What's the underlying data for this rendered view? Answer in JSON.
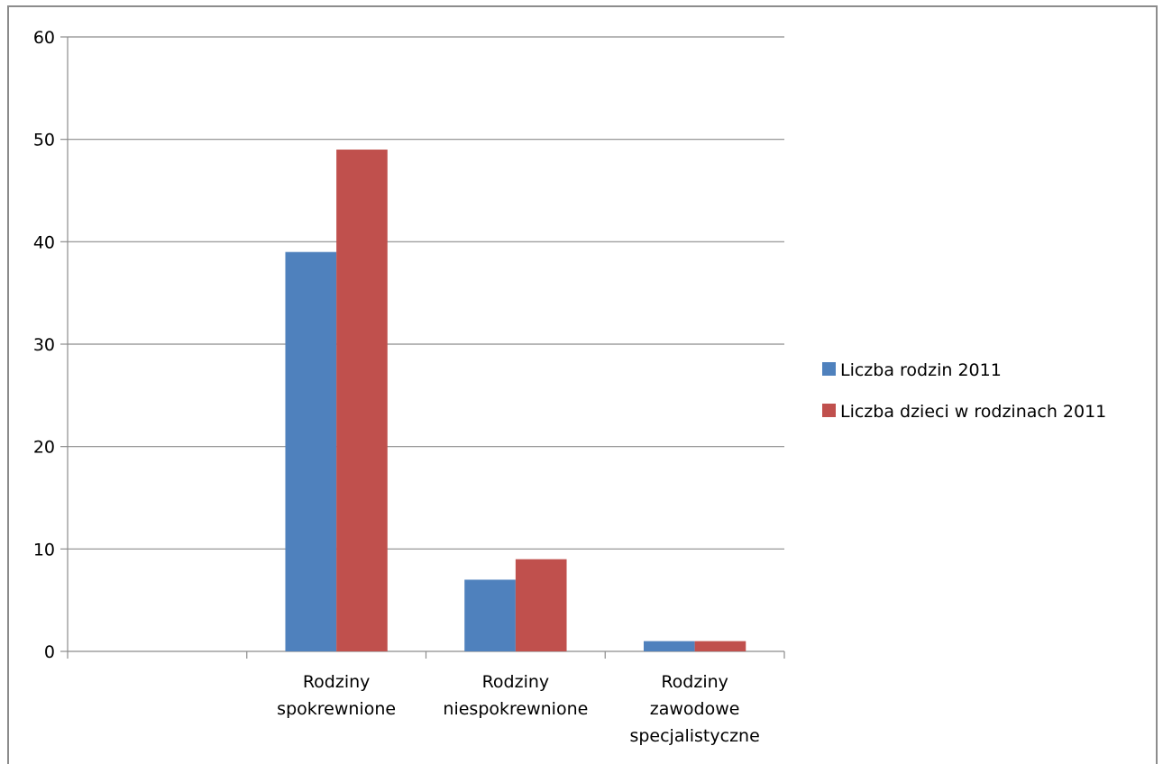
{
  "chart_data": {
    "type": "bar",
    "categories": [
      "",
      "Rodziny spokrewnione",
      "Rodziny niespokrewnione",
      "Rodziny zawodowe specjalistyczne"
    ],
    "category_lines": [
      [],
      [
        "Rodziny",
        "spokrewnione"
      ],
      [
        "Rodziny",
        "niespokrewnione"
      ],
      [
        "Rodziny",
        "zawodowe",
        "specjalistyczne"
      ]
    ],
    "series": [
      {
        "name": "Liczba rodzin 2011",
        "color": "#4f81bd",
        "values": [
          0,
          39,
          7,
          1
        ]
      },
      {
        "name": "Liczba dzieci w rodzinach 2011",
        "color": "#c0504d",
        "values": [
          0,
          49,
          9,
          1
        ]
      }
    ],
    "ylim": [
      0,
      60
    ],
    "yticks": [
      "0",
      "10",
      "20",
      "30",
      "40",
      "50",
      "60"
    ],
    "grid": true,
    "legend": "right",
    "title": "",
    "xlabel": "",
    "ylabel": ""
  }
}
